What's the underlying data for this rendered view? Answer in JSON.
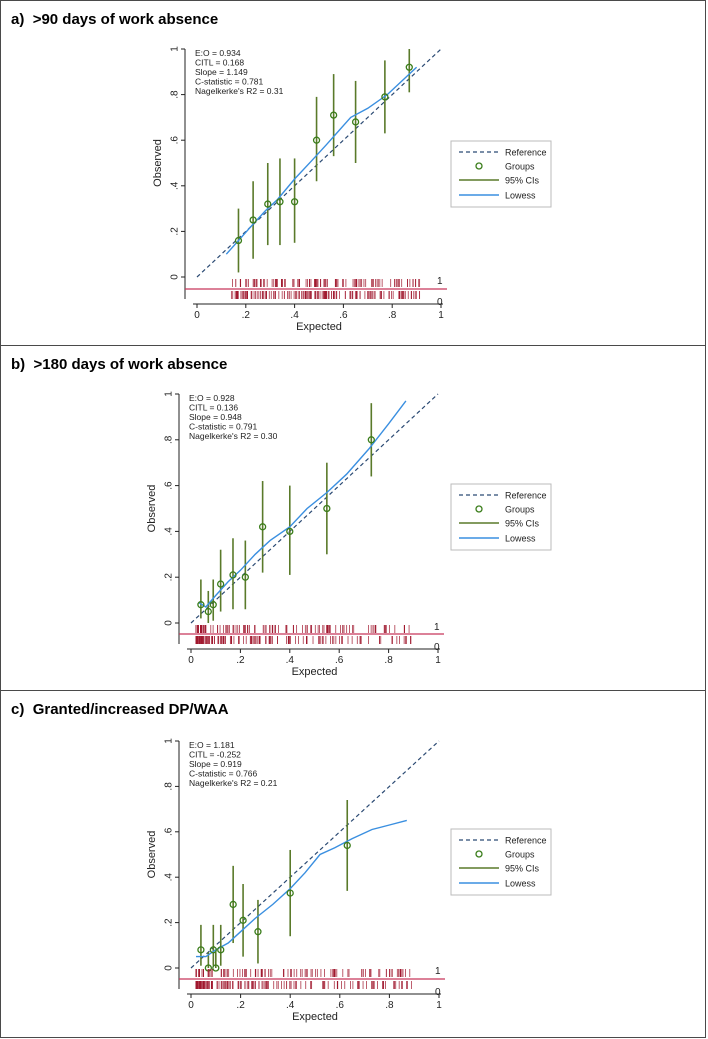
{
  "colors": {
    "reference": "#2b4a73",
    "groups": "#3a7d1a",
    "ci": "#5a7a2a",
    "lowess": "#3a8fe0",
    "rug": "#a0182e",
    "baseline": "#c8365a"
  },
  "chart_data": [
    {
      "type": "scatter",
      "panel_label": "a)",
      "title": ">90 days of work absence",
      "xlabel": "Expected",
      "ylabel": "Observed",
      "xlim": [
        0,
        1
      ],
      "ylim": [
        0,
        1
      ],
      "xticks": [
        "0",
        ".2",
        ".4",
        ".6",
        ".8",
        "1"
      ],
      "yticks": [
        "0",
        ".2",
        ".4",
        ".6",
        ".8",
        "1"
      ],
      "stats": [
        "E:O = 0.934",
        "CITL = 0.168",
        "Slope = 1.149",
        "C-statistic = 0.781",
        "Nagelkerke's R2 = 0.31"
      ],
      "legend": [
        "Reference",
        "Groups",
        "95% CIs",
        "Lowess"
      ],
      "rug_labels": [
        "1",
        "0"
      ],
      "groups": [
        {
          "x": 0.17,
          "y": 0.16,
          "lo": 0.02,
          "hi": 0.3
        },
        {
          "x": 0.23,
          "y": 0.25,
          "lo": 0.08,
          "hi": 0.42
        },
        {
          "x": 0.29,
          "y": 0.32,
          "lo": 0.14,
          "hi": 0.5
        },
        {
          "x": 0.34,
          "y": 0.33,
          "lo": 0.14,
          "hi": 0.52
        },
        {
          "x": 0.4,
          "y": 0.33,
          "lo": 0.15,
          "hi": 0.52
        },
        {
          "x": 0.49,
          "y": 0.6,
          "lo": 0.42,
          "hi": 0.79
        },
        {
          "x": 0.56,
          "y": 0.71,
          "lo": 0.53,
          "hi": 0.89
        },
        {
          "x": 0.65,
          "y": 0.68,
          "lo": 0.5,
          "hi": 0.86
        },
        {
          "x": 0.77,
          "y": 0.79,
          "lo": 0.63,
          "hi": 0.95
        },
        {
          "x": 0.87,
          "y": 0.92,
          "lo": 0.81,
          "hi": 1.0
        }
      ],
      "lowess": [
        [
          0.12,
          0.1
        ],
        [
          0.17,
          0.16
        ],
        [
          0.22,
          0.22
        ],
        [
          0.28,
          0.29
        ],
        [
          0.33,
          0.34
        ],
        [
          0.4,
          0.43
        ],
        [
          0.47,
          0.51
        ],
        [
          0.53,
          0.58
        ],
        [
          0.58,
          0.64
        ],
        [
          0.63,
          0.7
        ],
        [
          0.7,
          0.74
        ],
        [
          0.78,
          0.8
        ],
        [
          0.85,
          0.87
        ],
        [
          0.9,
          0.92
        ]
      ],
      "rug_x_range": [
        0.14,
        0.92
      ],
      "rug_seed": 7
    },
    {
      "type": "scatter",
      "panel_label": "b)",
      "title": ">180 days of work absence",
      "xlabel": "Expected",
      "ylabel": "Observed",
      "xlim": [
        0,
        1
      ],
      "ylim": [
        0,
        1
      ],
      "xticks": [
        "0",
        ".2",
        ".4",
        ".6",
        ".8",
        "1"
      ],
      "yticks": [
        "0",
        ".2",
        ".4",
        ".6",
        ".8",
        "1"
      ],
      "stats": [
        "E:O = 0.928",
        "CITL = 0.136",
        "Slope = 0.948",
        "C-statistic = 0.791",
        "Nagelkerke's R2 = 0.30"
      ],
      "legend": [
        "Reference",
        "Groups",
        "95% CIs",
        "Lowess"
      ],
      "rug_labels": [
        "1",
        "0"
      ],
      "groups": [
        {
          "x": 0.04,
          "y": 0.08,
          "lo": 0.02,
          "hi": 0.19
        },
        {
          "x": 0.07,
          "y": 0.05,
          "lo": 0.0,
          "hi": 0.14
        },
        {
          "x": 0.09,
          "y": 0.08,
          "lo": 0.01,
          "hi": 0.19
        },
        {
          "x": 0.12,
          "y": 0.17,
          "lo": 0.05,
          "hi": 0.32
        },
        {
          "x": 0.17,
          "y": 0.21,
          "lo": 0.06,
          "hi": 0.37
        },
        {
          "x": 0.22,
          "y": 0.2,
          "lo": 0.06,
          "hi": 0.36
        },
        {
          "x": 0.29,
          "y": 0.42,
          "lo": 0.22,
          "hi": 0.62
        },
        {
          "x": 0.4,
          "y": 0.4,
          "lo": 0.21,
          "hi": 0.6
        },
        {
          "x": 0.55,
          "y": 0.5,
          "lo": 0.3,
          "hi": 0.7
        },
        {
          "x": 0.73,
          "y": 0.8,
          "lo": 0.64,
          "hi": 0.96
        }
      ],
      "lowess": [
        [
          0.03,
          0.09
        ],
        [
          0.06,
          0.07
        ],
        [
          0.1,
          0.12
        ],
        [
          0.15,
          0.18
        ],
        [
          0.2,
          0.23
        ],
        [
          0.26,
          0.3
        ],
        [
          0.32,
          0.36
        ],
        [
          0.4,
          0.42
        ],
        [
          0.47,
          0.5
        ],
        [
          0.55,
          0.57
        ],
        [
          0.63,
          0.65
        ],
        [
          0.72,
          0.76
        ],
        [
          0.8,
          0.87
        ],
        [
          0.87,
          0.97
        ]
      ],
      "rug_x_range": [
        0.02,
        0.9
      ],
      "rug_seed": 13
    },
    {
      "type": "scatter",
      "panel_label": "c)",
      "title": "Granted/increased DP/WAA",
      "xlabel": "Expected",
      "ylabel": "Observed",
      "xlim": [
        0,
        1
      ],
      "ylim": [
        0,
        1
      ],
      "xticks": [
        "0",
        ".2",
        ".4",
        ".6",
        ".8",
        "1"
      ],
      "yticks": [
        "0",
        ".2",
        ".4",
        ".6",
        ".8",
        "1"
      ],
      "stats": [
        "E:O = 1.181",
        "CITL = -0.252",
        "Slope = 0.919",
        "C-statistic = 0.766",
        "Nagelkerke's R2 = 0.21"
      ],
      "legend": [
        "Reference",
        "Groups",
        "95% CIs",
        "Lowess"
      ],
      "rug_labels": [
        "1",
        "0"
      ],
      "groups": [
        {
          "x": 0.04,
          "y": 0.08,
          "lo": 0.01,
          "hi": 0.19
        },
        {
          "x": 0.07,
          "y": 0.0,
          "lo": 0.0,
          "hi": 0.07
        },
        {
          "x": 0.09,
          "y": 0.08,
          "lo": 0.01,
          "hi": 0.19
        },
        {
          "x": 0.1,
          "y": 0.0,
          "lo": 0.0,
          "hi": 0.07
        },
        {
          "x": 0.12,
          "y": 0.08,
          "lo": 0.01,
          "hi": 0.19
        },
        {
          "x": 0.17,
          "y": 0.28,
          "lo": 0.11,
          "hi": 0.45
        },
        {
          "x": 0.21,
          "y": 0.21,
          "lo": 0.05,
          "hi": 0.37
        },
        {
          "x": 0.27,
          "y": 0.16,
          "lo": 0.02,
          "hi": 0.3
        },
        {
          "x": 0.4,
          "y": 0.33,
          "lo": 0.14,
          "hi": 0.52
        },
        {
          "x": 0.63,
          "y": 0.54,
          "lo": 0.34,
          "hi": 0.74
        }
      ],
      "lowess": [
        [
          0.02,
          0.05
        ],
        [
          0.06,
          0.05
        ],
        [
          0.1,
          0.08
        ],
        [
          0.15,
          0.11
        ],
        [
          0.2,
          0.16
        ],
        [
          0.26,
          0.22
        ],
        [
          0.33,
          0.28
        ],
        [
          0.4,
          0.35
        ],
        [
          0.46,
          0.42
        ],
        [
          0.52,
          0.5
        ],
        [
          0.58,
          0.53
        ],
        [
          0.65,
          0.57
        ],
        [
          0.73,
          0.61
        ],
        [
          0.8,
          0.63
        ],
        [
          0.87,
          0.65
        ]
      ],
      "rug_x_range": [
        0.02,
        0.9
      ],
      "rug_seed": 29
    }
  ]
}
